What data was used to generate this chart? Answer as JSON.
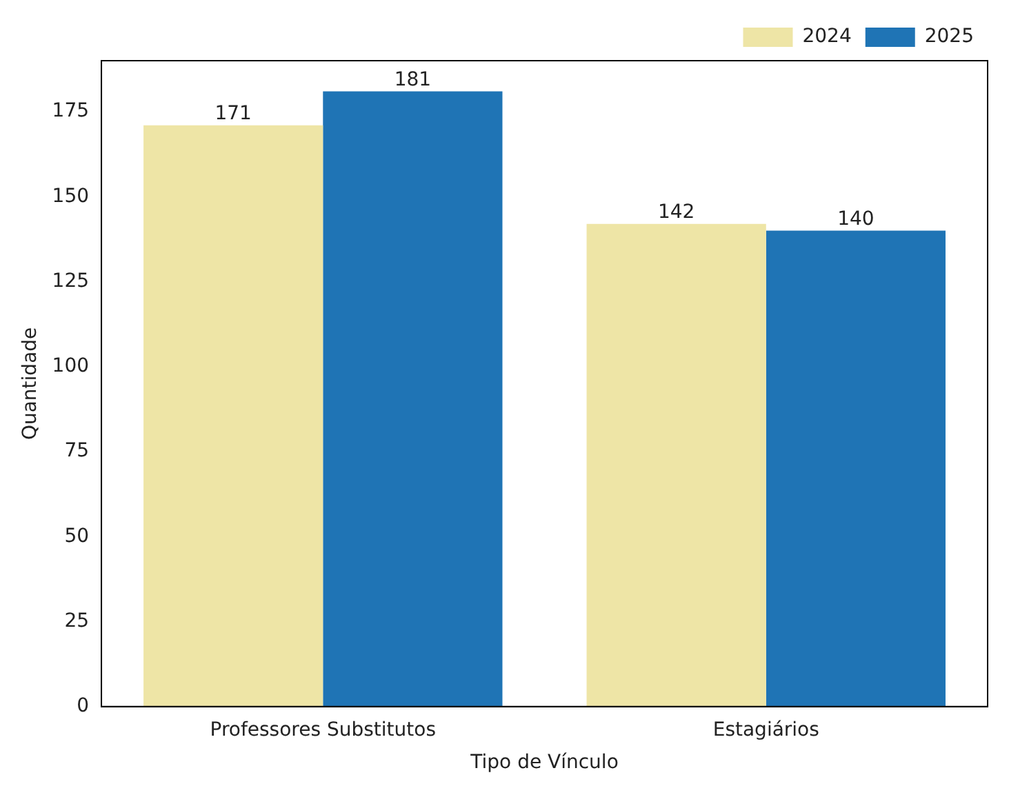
{
  "chart_data": {
    "type": "bar",
    "xlabel": "Tipo de Vínculo",
    "ylabel": "Quantidade",
    "categories": [
      "Professores Substitutos",
      "Estagiários"
    ],
    "series": [
      {
        "name": "2024",
        "color": "#eee5a6",
        "values": [
          171,
          142
        ]
      },
      {
        "name": "2025",
        "color": "#1f74b5",
        "values": [
          181,
          140
        ]
      }
    ],
    "ylim": [
      0,
      190
    ],
    "yticks": [
      0,
      25,
      50,
      75,
      100,
      125,
      150,
      175
    ],
    "grid": false,
    "legend": "top right",
    "data_labels": true
  }
}
